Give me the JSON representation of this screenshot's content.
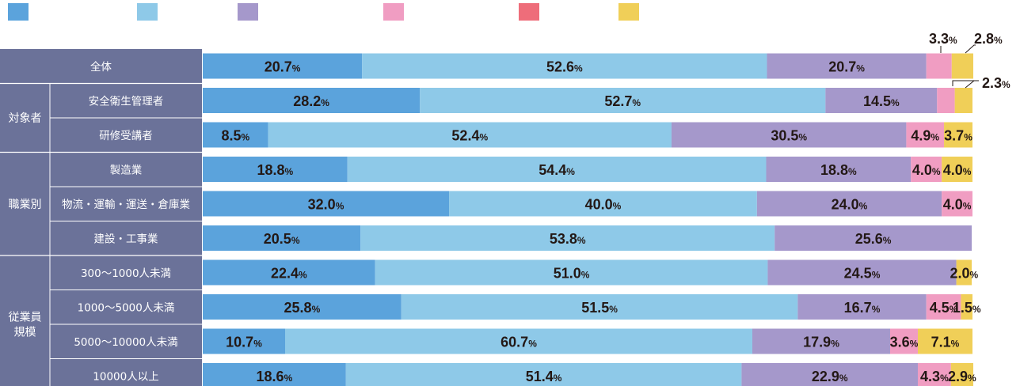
{
  "chart_data": {
    "type": "bar",
    "orientation": "horizontal",
    "stacked": true,
    "percent_suffix": "%",
    "colors": [
      "#5ba3dc",
      "#8ec9e8",
      "#a598cb",
      "#f09dc2",
      "#ee6d7a",
      "#f0cf58"
    ],
    "legend_position": "top",
    "groups": [
      {
        "label": "",
        "rows": [
          0
        ]
      },
      {
        "label": "対象者",
        "rows": [
          1,
          2
        ]
      },
      {
        "label": "職業別",
        "rows": [
          3,
          4,
          5
        ]
      },
      {
        "label": "従業員\n規模",
        "rows": [
          6,
          7,
          8,
          9
        ]
      }
    ],
    "categories": [
      "全体",
      "安全衛生管理者",
      "研修受講者",
      "製造業",
      "物流・運輸・運送・倉庫業",
      "建設・工事業",
      "300～1000人未満",
      "1000～5000人未満",
      "5000～10000人未満",
      "10000人以上"
    ],
    "series": [
      {
        "values": [
          20.7,
          28.2,
          8.5,
          18.8,
          32.0,
          20.5,
          22.4,
          25.8,
          10.7,
          18.6
        ]
      },
      {
        "values": [
          52.6,
          52.7,
          52.4,
          54.4,
          40.0,
          53.8,
          51.0,
          51.5,
          60.7,
          51.4
        ]
      },
      {
        "values": [
          20.7,
          14.5,
          30.5,
          18.8,
          24.0,
          25.6,
          24.5,
          16.7,
          17.9,
          22.9
        ]
      },
      {
        "values": [
          3.3,
          2.3,
          4.9,
          4.0,
          4.0,
          0,
          0,
          4.5,
          3.6,
          4.3
        ]
      },
      {
        "values": [
          0,
          0,
          0,
          0,
          0,
          0,
          0,
          0,
          0,
          0
        ]
      },
      {
        "values": [
          2.8,
          2.3,
          3.7,
          4.0,
          0,
          0,
          2.0,
          1.5,
          7.1,
          2.9
        ]
      }
    ],
    "value_labels": [
      [
        "20.7",
        "52.6",
        "20.7",
        "3.3",
        "",
        "2.8"
      ],
      [
        "28.2",
        "52.7",
        "14.5",
        "",
        "",
        "2.3"
      ],
      [
        "8.5",
        "52.4",
        "30.5",
        "4.9",
        "",
        "3.7"
      ],
      [
        "18.8",
        "54.4",
        "18.8",
        "4.0",
        "",
        "4.0"
      ],
      [
        "32.0",
        "40.0",
        "24.0",
        "4.0",
        "",
        ""
      ],
      [
        "20.5",
        "53.8",
        "25.6",
        "",
        "",
        ""
      ],
      [
        "22.4",
        "51.0",
        "24.5",
        "",
        "",
        "2.0"
      ],
      [
        "25.8",
        "51.5",
        "16.7",
        "4.5",
        "",
        "1.5"
      ],
      [
        "10.7",
        "60.7",
        "17.9",
        "3.6",
        "",
        "7.1"
      ],
      [
        "18.6",
        "51.4",
        "22.9",
        "4.3",
        "",
        "2.9"
      ]
    ]
  }
}
